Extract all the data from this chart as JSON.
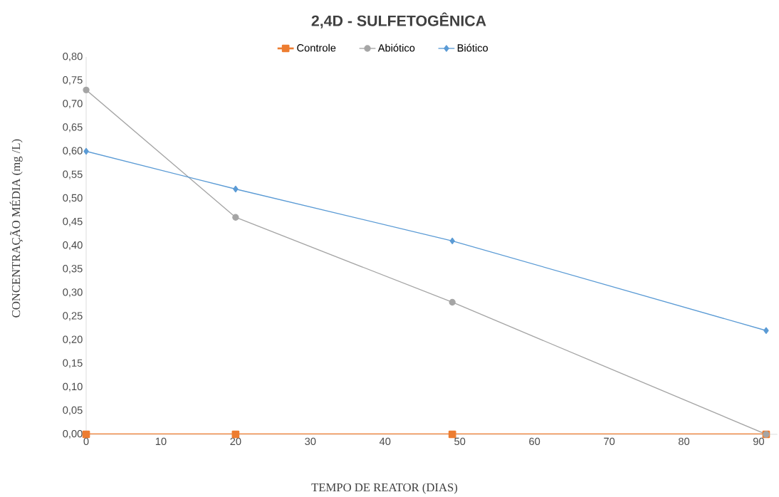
{
  "chart_data": {
    "type": "line",
    "title": "2,4D - SULFETOGÊNICA",
    "xlabel": "TEMPO DE REATOR (DIAS)",
    "ylabel": "CONCENTRAÇÃO  MÉDIA  (mg /L)",
    "x": [
      0,
      20,
      49,
      91
    ],
    "series": [
      {
        "name": "Controle",
        "color": "#ed7d31",
        "marker": "square",
        "values": [
          0,
          0,
          0,
          0
        ]
      },
      {
        "name": "Abiótico",
        "color": "#a5a5a5",
        "marker": "circle",
        "values": [
          0.73,
          0.46,
          0.28,
          0.0
        ]
      },
      {
        "name": "Biótico",
        "color": "#5b9bd5",
        "marker": "diamond",
        "values": [
          0.6,
          0.52,
          0.41,
          0.22
        ]
      }
    ],
    "xlim": [
      0,
      92.5
    ],
    "xticks": [
      0,
      10,
      20,
      30,
      40,
      50,
      60,
      70,
      80,
      90
    ],
    "ylim": [
      0,
      0.8
    ],
    "yticks": [
      {
        "value": 0,
        "label": "0,00"
      },
      {
        "value": 0.05,
        "label": "0,05"
      },
      {
        "value": 0.1,
        "label": "0,10"
      },
      {
        "value": 0.15,
        "label": "0,15"
      },
      {
        "value": 0.2,
        "label": "0,20"
      },
      {
        "value": 0.25,
        "label": "0,25"
      },
      {
        "value": 0.3,
        "label": "0,30"
      },
      {
        "value": 0.35,
        "label": "0,35"
      },
      {
        "value": 0.4,
        "label": "0,40"
      },
      {
        "value": 0.45,
        "label": "0,45"
      },
      {
        "value": 0.5,
        "label": "0,50"
      },
      {
        "value": 0.55,
        "label": "0,55"
      },
      {
        "value": 0.6,
        "label": "0,60"
      },
      {
        "value": 0.65,
        "label": "0,65"
      },
      {
        "value": 0.7,
        "label": "0,70"
      },
      {
        "value": 0.75,
        "label": "0,75"
      },
      {
        "value": 0.8,
        "label": "0,80"
      }
    ],
    "grid": false,
    "legend": "top",
    "line_style": "solid"
  }
}
